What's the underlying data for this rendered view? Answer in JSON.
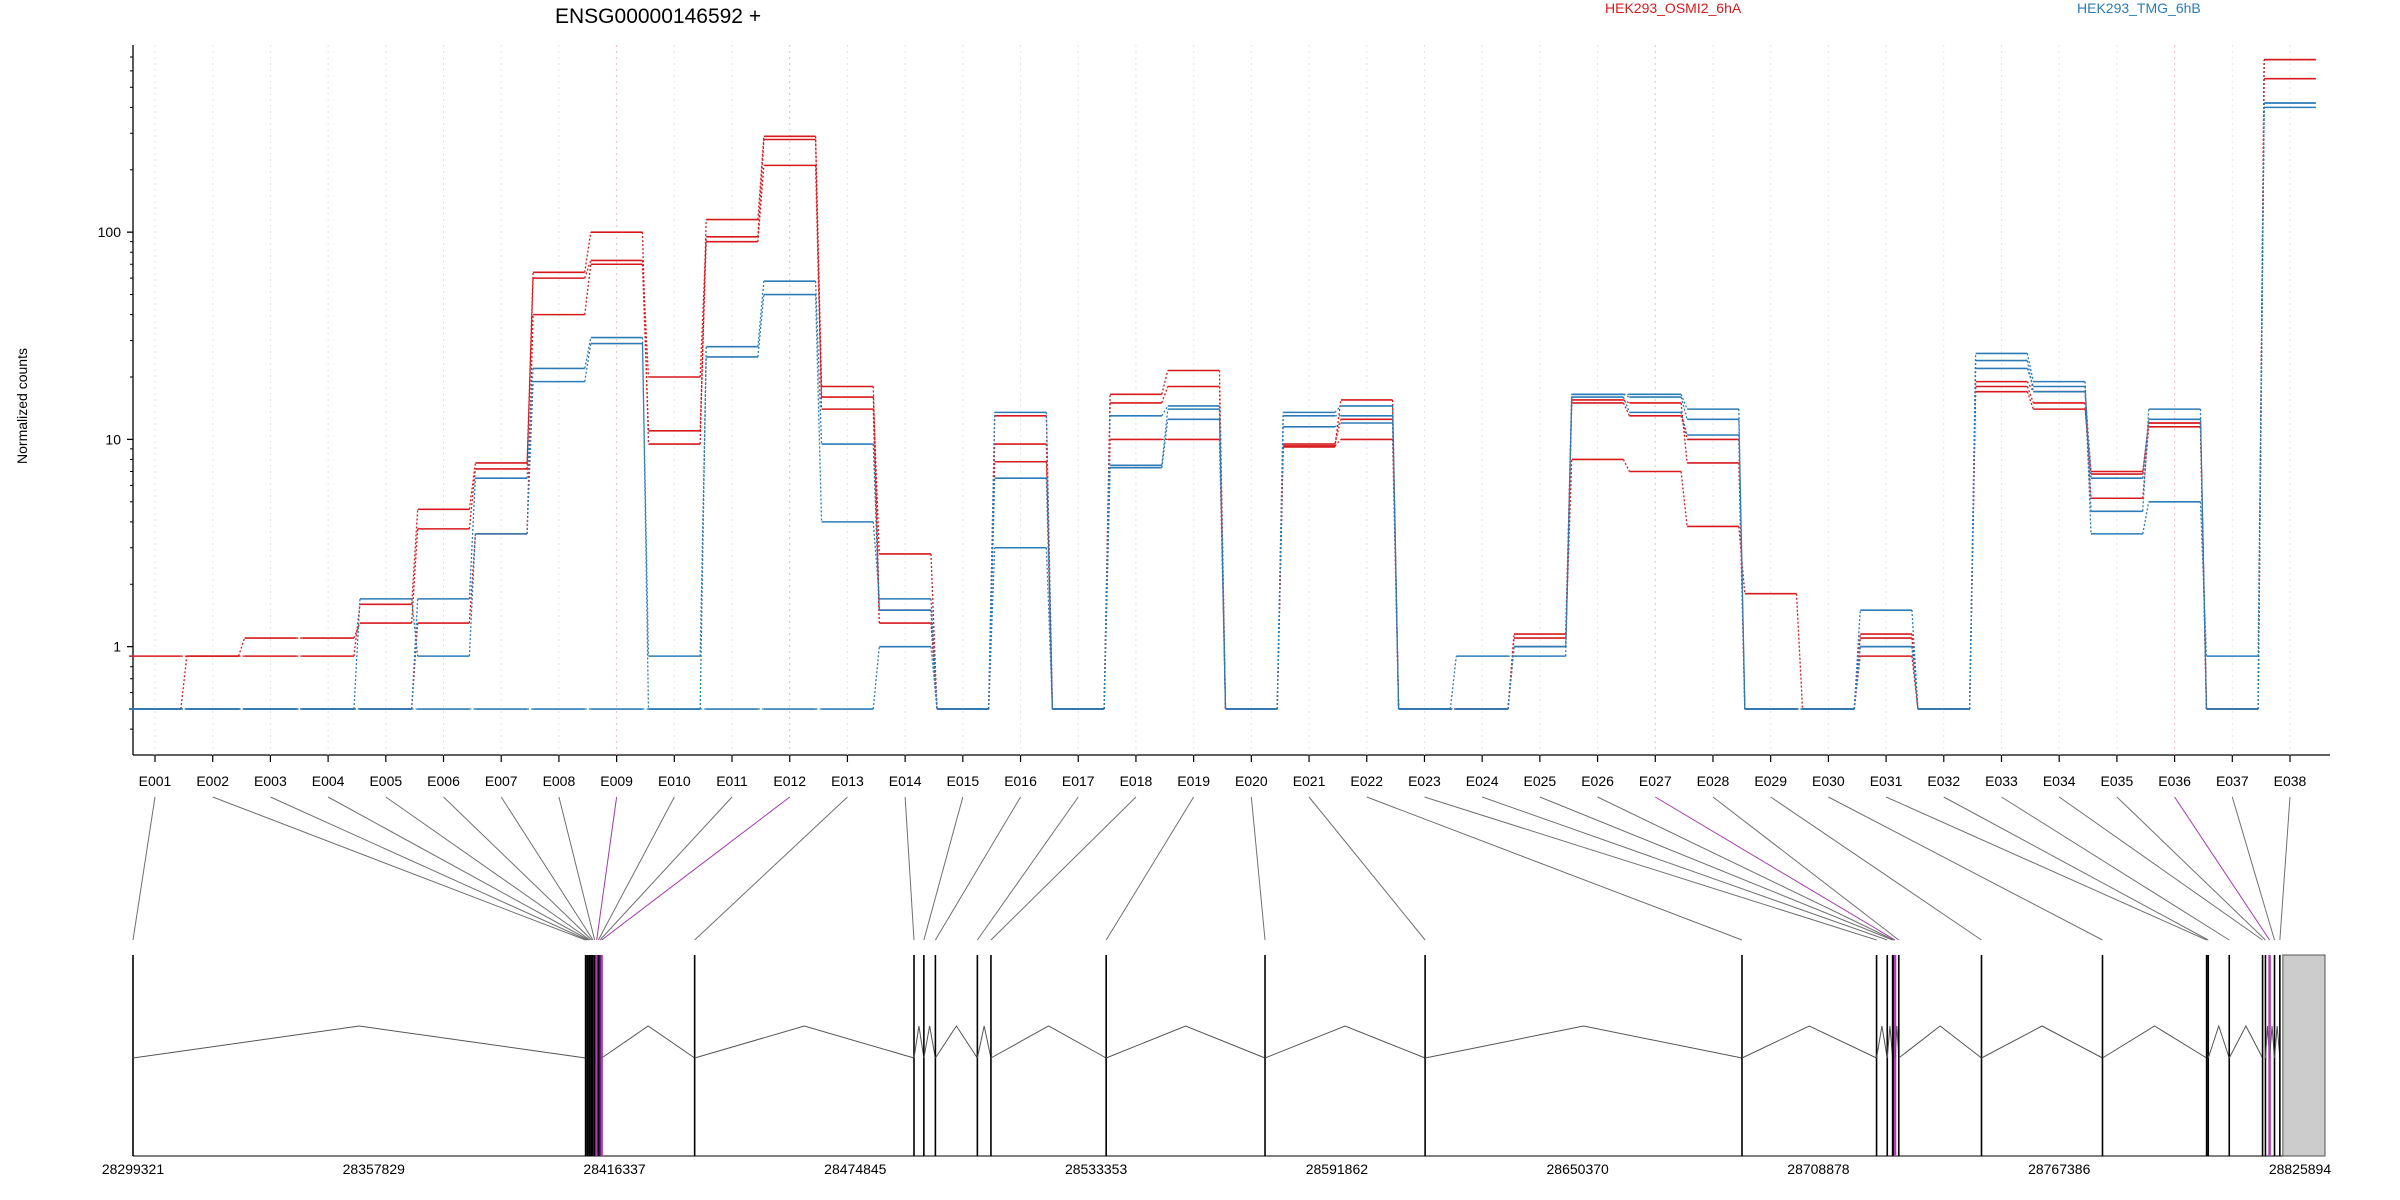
{
  "chart_data": {
    "type": "line",
    "title": "ENSG00000146592 +",
    "ylabel": "Normalized counts",
    "yscale": "log",
    "ylim": [
      0.3,
      800
    ],
    "yticks": [
      1,
      10,
      100
    ],
    "ytick_labels": [
      "1",
      "10",
      "100"
    ],
    "legend_placement": "top",
    "categories": [
      "E001",
      "E002",
      "E003",
      "E004",
      "E005",
      "E006",
      "E007",
      "E008",
      "E009",
      "E010",
      "E011",
      "E012",
      "E013",
      "E014",
      "E015",
      "E016",
      "E017",
      "E018",
      "E019",
      "E020",
      "E021",
      "E022",
      "E023",
      "E024",
      "E025",
      "E026",
      "E027",
      "E028",
      "E029",
      "E030",
      "E031",
      "E032",
      "E033",
      "E034",
      "E035",
      "E036",
      "E037",
      "E038"
    ],
    "highlight_exons": [
      "E009",
      "E012",
      "E027",
      "E036"
    ],
    "series": [
      {
        "name": "HEK293_OSMI2_6hA",
        "values": [
          0.5,
          0.5,
          0.5,
          0.5,
          0.5,
          1.3,
          3.5,
          40,
          70,
          11,
          90,
          210,
          14,
          1.3,
          0.5,
          7.8,
          0.5,
          10,
          10,
          0.5,
          9.3,
          10,
          0.5,
          0.5,
          1.1,
          8,
          7,
          3.8,
          1.8,
          0.5,
          0.9,
          0.5,
          18,
          15,
          5.2,
          11.5,
          0.5,
          550
        ]
      },
      {
        "name": "HEK293_OSMI2_6hA",
        "values": [
          0.9,
          0.9,
          1.1,
          1.1,
          1.3,
          3.7,
          7.2,
          60,
          73,
          20,
          95,
          280,
          16,
          2.8,
          0.5,
          9.5,
          0.5,
          15,
          18,
          0.5,
          9.5,
          12.5,
          0.5,
          0.5,
          1.0,
          15,
          13,
          10,
          0.5,
          0.5,
          1.1,
          0.5,
          17,
          14,
          6.8,
          12,
          0.5,
          680
        ]
      },
      {
        "name": "HEK293_OSMI2_6hA",
        "values": [
          0.5,
          0.9,
          0.9,
          0.9,
          1.6,
          4.6,
          7.7,
          64,
          100,
          9.5,
          115,
          290,
          18,
          1.5,
          0.5,
          13,
          0.5,
          16.5,
          21.5,
          0.5,
          9.2,
          15.5,
          0.5,
          0.5,
          1.15,
          15.5,
          15,
          7.7,
          0.5,
          0.5,
          1.15,
          0.5,
          19,
          17,
          7.0,
          12,
          0.5,
          680
        ]
      },
      {
        "name": "HEK293_TMG_6hB",
        "values": [
          0.5,
          0.5,
          0.5,
          0.5,
          0.5,
          0.5,
          0.5,
          0.5,
          0.5,
          0.5,
          0.5,
          0.5,
          0.5,
          1.0,
          0.5,
          3.0,
          0.5,
          7.3,
          12.5,
          0.5,
          11.5,
          12,
          0.5,
          0.9,
          0.9,
          16,
          13.5,
          10.5,
          0.5,
          0.5,
          1.0,
          0.5,
          22,
          18,
          3.5,
          5.0,
          0.9,
          400
        ]
      },
      {
        "name": "HEK293_TMG_6hB",
        "values": [
          0.5,
          0.5,
          0.5,
          0.5,
          1.7,
          0.9,
          3.5,
          19,
          29,
          0.9,
          25,
          50,
          4.0,
          1.7,
          0.5,
          6.5,
          0.5,
          7.5,
          14,
          0.5,
          13,
          13,
          0.5,
          0.5,
          1.0,
          16.5,
          16.5,
          14,
          0.5,
          0.5,
          1.5,
          0.5,
          26,
          19,
          4.5,
          14,
          0.5,
          420
        ]
      },
      {
        "name": "HEK293_TMG_6hB",
        "values": [
          0.5,
          0.5,
          0.5,
          0.5,
          0.5,
          1.7,
          6.5,
          22,
          31,
          0.5,
          28,
          58,
          9.5,
          1.5,
          0.5,
          13.5,
          0.5,
          13,
          14.5,
          0.5,
          13.5,
          14.5,
          0.5,
          0.5,
          1.0,
          16.5,
          16,
          12.5,
          0.5,
          0.5,
          1.0,
          0.5,
          24,
          17,
          6.5,
          12.5,
          0.5,
          420
        ]
      }
    ],
    "coordinate_axis": {
      "labels": [
        "28299321",
        "28357829",
        "28416337",
        "28474845",
        "28533353",
        "28591862",
        "28650370",
        "28708878",
        "28767386",
        "28825894"
      ],
      "exon_positions": [
        28299321,
        28409300,
        28409700,
        28410100,
        28410400,
        28410800,
        28411100,
        28411500,
        28412000,
        28412400,
        28412800,
        28413200,
        28435800,
        28489100,
        28491500,
        28494300,
        28504500,
        28507800,
        28535800,
        28574400,
        28613300,
        28690300,
        28723000,
        28725600,
        28726900,
        28727200,
        28727500,
        28728400,
        28748500,
        28777900,
        28803200,
        28803600,
        28808700,
        28816800,
        28817500,
        28818500,
        28819700,
        28821000
      ]
    }
  }
}
